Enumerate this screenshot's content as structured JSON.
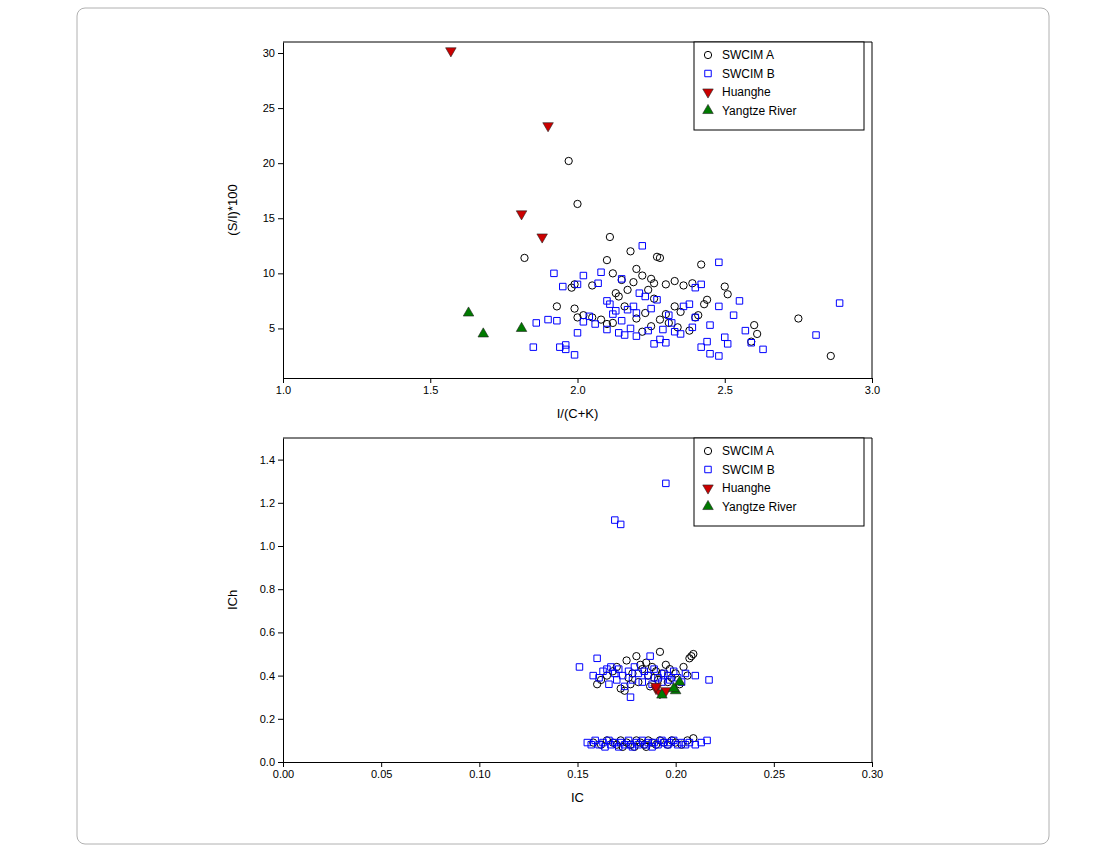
{
  "chart_data": [
    {
      "type": "scatter",
      "x_label": "I/(C+K)",
      "y_label": "(S/I)*100",
      "xlim": [
        1,
        3
      ],
      "ylim": [
        0.5,
        31
      ],
      "xticks": [
        {
          "value": 1,
          "label": "1.0"
        },
        {
          "value": 1.5,
          "label": "1.5"
        },
        {
          "value": 2,
          "label": "2.0"
        },
        {
          "value": 2.5,
          "label": "2.5"
        },
        {
          "value": 3,
          "label": "3.0"
        }
      ],
      "yticks": [
        5,
        10,
        15,
        20,
        25,
        30
      ],
      "grid": false,
      "legend": "upper right",
      "series": [
        {
          "name": "SWCIM A",
          "color": "#000000",
          "marker": "open-circle",
          "x": [
            1.97,
            2.0,
            1.82,
            2.11,
            2.75,
            2.86,
            2.6,
            2.61,
            2.59,
            2.5,
            2.51,
            2.42,
            2.27,
            2.28,
            2.18,
            2.2,
            2.22,
            2.25,
            2.26,
            2.3,
            2.33,
            2.36,
            2.39,
            2.44,
            2.43,
            2.4,
            2.41,
            2.33,
            2.35,
            2.3,
            1.99,
            1.98,
            2.05,
            2.1,
            2.15,
            2.13,
            2.14,
            2.16,
            2.08,
            2.05,
            2.02,
            1.99,
            1.93,
            2.0,
            2.1,
            2.12,
            2.2,
            2.23,
            2.26,
            2.31,
            2.34,
            2.28,
            2.19,
            2.24,
            2.38,
            2.25,
            2.17,
            2.12,
            2.22
          ],
          "values": [
            20.2,
            16.3,
            11.4,
            13.3,
            5.9,
            2.5,
            5.3,
            4.5,
            3.8,
            8.8,
            8.1,
            10.8,
            11.5,
            11.4,
            12.0,
            10.4,
            9.8,
            9.5,
            9.1,
            9.0,
            9.3,
            8.9,
            9.1,
            7.6,
            7.2,
            6.0,
            6.2,
            7.0,
            6.5,
            6.3,
            9.0,
            8.7,
            8.9,
            11.2,
            9.4,
            8.2,
            7.9,
            7.0,
            5.8,
            6.0,
            6.2,
            6.8,
            7.0,
            6.0,
            5.4,
            5.5,
            5.9,
            6.4,
            7.7,
            5.5,
            5.1,
            5.8,
            9.2,
            8.5,
            4.8,
            5.2,
            8.5,
            10.0,
            4.7
          ]
        },
        {
          "name": "SWCIM B",
          "color": "#0000ff",
          "marker": "open-square",
          "x": [
            2.22,
            2.48,
            2.89,
            2.81,
            2.55,
            2.57,
            2.59,
            2.63,
            2.51,
            2.48,
            2.45,
            2.44,
            2.42,
            2.48,
            2.42,
            2.4,
            2.38,
            2.35,
            2.32,
            2.3,
            2.28,
            2.26,
            2.24,
            2.2,
            2.18,
            2.16,
            2.14,
            2.12,
            2.1,
            2.08,
            2.07,
            2.02,
            2.0,
            1.92,
            1.95,
            1.9,
            1.93,
            1.96,
            1.94,
            1.96,
            1.99,
            1.85,
            1.86,
            2.0,
            2.02,
            2.04,
            2.06,
            2.1,
            2.11,
            2.13,
            2.15,
            2.17,
            2.19,
            2.21,
            2.23,
            2.25,
            2.27,
            2.29,
            2.31,
            2.33,
            2.36,
            2.4,
            2.45,
            2.5,
            2.53,
            2.39,
            2.15,
            2.2
          ],
          "values": [
            12.5,
            11.0,
            7.3,
            4.4,
            7.5,
            4.8,
            3.7,
            3.1,
            3.6,
            2.5,
            2.7,
            3.8,
            3.3,
            7.0,
            9.0,
            6.0,
            7.2,
            4.5,
            5.5,
            3.7,
            4.0,
            3.6,
            4.8,
            4.3,
            5.0,
            4.4,
            4.6,
            6.3,
            7.5,
            10.1,
            9.1,
            9.8,
            9.0,
            10.0,
            8.8,
            5.8,
            5.7,
            3.5,
            3.3,
            3.1,
            2.6,
            3.3,
            5.5,
            4.6,
            5.6,
            6.1,
            5.4,
            4.9,
            7.2,
            6.6,
            5.7,
            6.7,
            7.0,
            8.2,
            7.9,
            6.8,
            7.6,
            4.9,
            6.2,
            4.7,
            7.0,
            8.7,
            5.3,
            4.2,
            6.2,
            5.1,
            9.5,
            6.4
          ]
        },
        {
          "name": "Huanghe",
          "color": "#cc0000",
          "marker": "triangle-down",
          "x": [
            1.57,
            1.9,
            1.81,
            1.88
          ],
          "values": [
            30.2,
            23.4,
            15.4,
            13.3
          ]
        },
        {
          "name": "Yangtze River",
          "color": "#007a00",
          "marker": "triangle-up",
          "x": [
            1.63,
            1.68,
            1.81
          ],
          "values": [
            6.4,
            4.5,
            5.0
          ]
        }
      ]
    },
    {
      "type": "scatter",
      "x_label": "IC",
      "y_label": "ICh",
      "xlim": [
        0,
        0.3
      ],
      "ylim": [
        0,
        1.5
      ],
      "xticks": [
        {
          "value": 0,
          "label": "0.00"
        },
        {
          "value": 0.05,
          "label": "0.05"
        },
        {
          "value": 0.1,
          "label": "0.10"
        },
        {
          "value": 0.15,
          "label": "0.15"
        },
        {
          "value": 0.2,
          "label": "0.20"
        },
        {
          "value": 0.25,
          "label": "0.25"
        },
        {
          "value": 0.3,
          "label": "0.30"
        }
      ],
      "yticks": [
        {
          "value": 0,
          "label": "0.0"
        },
        {
          "value": 0.2,
          "label": "0.2"
        },
        {
          "value": 0.4,
          "label": "0.4"
        },
        {
          "value": 0.6,
          "label": "0.6"
        },
        {
          "value": 0.8,
          "label": "0.8"
        },
        {
          "value": 1,
          "label": "1.0"
        },
        {
          "value": 1.2,
          "label": "1.2"
        },
        {
          "value": 1.4,
          "label": "1.4"
        }
      ],
      "grid": false,
      "legend": "upper right",
      "series": [
        {
          "name": "SWCIM A",
          "color": "#000000",
          "marker": "open-circle",
          "x": [
            0.16,
            0.162,
            0.165,
            0.168,
            0.17,
            0.172,
            0.174,
            0.175,
            0.176,
            0.178,
            0.18,
            0.181,
            0.183,
            0.185,
            0.186,
            0.187,
            0.188,
            0.19,
            0.191,
            0.192,
            0.193,
            0.195,
            0.196,
            0.197,
            0.198,
            0.2,
            0.202,
            0.204,
            0.206,
            0.208,
            0.209,
            0.207,
            0.182,
            0.177,
            0.189,
            0.158,
            0.162,
            0.165,
            0.168,
            0.17,
            0.172,
            0.175,
            0.177,
            0.18,
            0.182,
            0.184,
            0.186,
            0.188,
            0.19,
            0.192,
            0.194,
            0.196,
            0.198,
            0.2,
            0.203,
            0.206,
            0.209,
            0.179,
            0.185,
            0.173
          ],
          "values": [
            0.36,
            0.38,
            0.4,
            0.42,
            0.44,
            0.34,
            0.33,
            0.47,
            0.39,
            0.41,
            0.49,
            0.37,
            0.43,
            0.46,
            0.4,
            0.35,
            0.44,
            0.42,
            0.38,
            0.51,
            0.41,
            0.45,
            0.37,
            0.43,
            0.39,
            0.41,
            0.36,
            0.44,
            0.4,
            0.49,
            0.5,
            0.48,
            0.45,
            0.36,
            0.39,
            0.09,
            0.08,
            0.1,
            0.09,
            0.08,
            0.1,
            0.09,
            0.08,
            0.1,
            0.09,
            0.08,
            0.1,
            0.09,
            0.08,
            0.1,
            0.09,
            0.08,
            0.1,
            0.09,
            0.08,
            0.1,
            0.11,
            0.07,
            0.07,
            0.07
          ]
        },
        {
          "name": "SWCIM B",
          "color": "#0000ff",
          "marker": "open-square",
          "x": [
            0.151,
            0.158,
            0.16,
            0.161,
            0.163,
            0.165,
            0.166,
            0.167,
            0.169,
            0.17,
            0.171,
            0.173,
            0.174,
            0.176,
            0.177,
            0.178,
            0.179,
            0.181,
            0.183,
            0.184,
            0.186,
            0.187,
            0.188,
            0.189,
            0.191,
            0.193,
            0.194,
            0.196,
            0.197,
            0.199,
            0.201,
            0.203,
            0.205,
            0.21,
            0.217,
            0.155,
            0.157,
            0.159,
            0.161,
            0.163,
            0.164,
            0.166,
            0.167,
            0.169,
            0.171,
            0.172,
            0.174,
            0.176,
            0.177,
            0.178,
            0.18,
            0.181,
            0.183,
            0.185,
            0.186,
            0.188,
            0.189,
            0.191,
            0.193,
            0.194,
            0.196,
            0.197,
            0.199,
            0.201,
            0.203,
            0.205,
            0.207,
            0.21,
            0.213,
            0.216,
            0.195,
            0.169,
            0.172
          ],
          "values": [
            0.44,
            0.4,
            0.48,
            0.39,
            0.42,
            0.43,
            0.36,
            0.44,
            0.41,
            0.38,
            0.43,
            0.4,
            0.35,
            0.42,
            0.3,
            0.38,
            0.44,
            0.41,
            0.37,
            0.42,
            0.4,
            0.49,
            0.36,
            0.43,
            0.39,
            0.37,
            0.41,
            0.4,
            0.38,
            0.42,
            0.39,
            0.37,
            0.41,
            0.4,
            0.38,
            0.09,
            0.08,
            0.1,
            0.08,
            0.09,
            0.07,
            0.1,
            0.08,
            0.09,
            0.07,
            0.09,
            0.08,
            0.1,
            0.08,
            0.07,
            0.09,
            0.08,
            0.1,
            0.08,
            0.09,
            0.07,
            0.09,
            0.08,
            0.1,
            0.09,
            0.08,
            0.09,
            0.1,
            0.08,
            0.09,
            0.08,
            0.09,
            0.08,
            0.09,
            0.1,
            1.29,
            1.12,
            1.1
          ]
        },
        {
          "name": "Huanghe",
          "color": "#cc0000",
          "marker": "triangle-down",
          "x": [
            0.19,
            0.192,
            0.19,
            0.195
          ],
          "values": [
            0.34,
            0.32,
            0.35,
            0.33
          ]
        },
        {
          "name": "Yangtze River",
          "color": "#007a00",
          "marker": "triangle-up",
          "x": [
            0.193,
            0.2,
            0.202,
            0.199
          ],
          "values": [
            0.31,
            0.33,
            0.37,
            0.34
          ]
        }
      ]
    }
  ]
}
